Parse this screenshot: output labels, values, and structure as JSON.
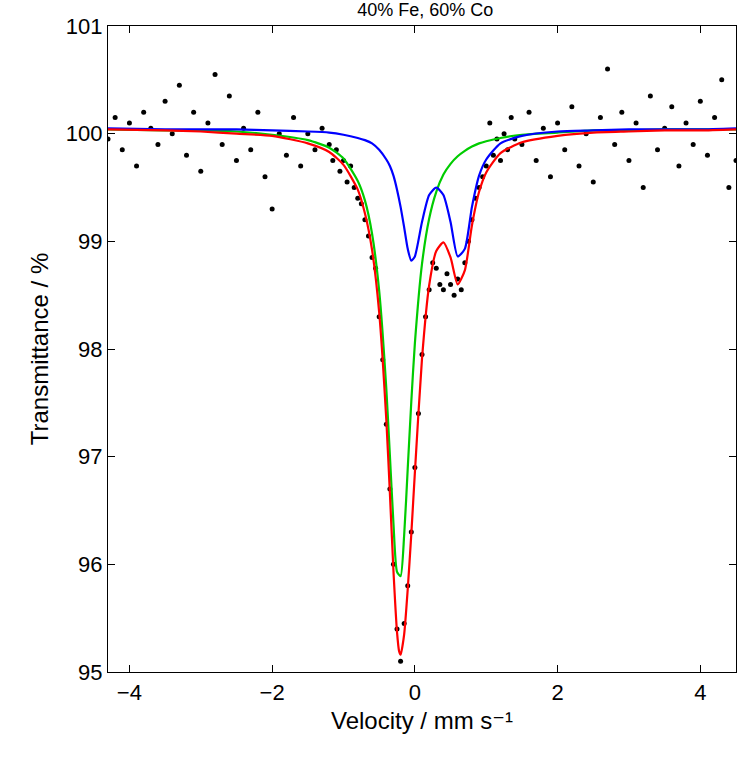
{
  "chart_data": {
    "type": "scatter",
    "title": "40% Fe, 60% Co",
    "x_label": "Velocity / mm s⁻¹",
    "y_label": "Transmittance / %",
    "xlim": [
      -4.3,
      4.5
    ],
    "xticks": [
      -4,
      -2,
      0,
      2,
      4
    ],
    "ylim": [
      95,
      101
    ],
    "yticks": [
      95,
      96,
      97,
      98,
      99,
      100,
      101
    ],
    "grid": false,
    "series": [
      {
        "type": "scatter",
        "color": "#000000",
        "marker": "circle",
        "x": [
          -4.3,
          -4.2,
          -4.1,
          -4.0,
          -3.9,
          -3.8,
          -3.7,
          -3.6,
          -3.5,
          -3.4,
          -3.3,
          -3.2,
          -3.1,
          -3.0,
          -2.9,
          -2.8,
          -2.7,
          -2.6,
          -2.5,
          -2.4,
          -2.3,
          -2.2,
          -2.1,
          -2.0,
          -1.9,
          -1.8,
          -1.7,
          -1.6,
          -1.5,
          -1.4,
          -1.3,
          -1.2,
          -1.15,
          -1.1,
          -1.05,
          -1.0,
          -0.95,
          -0.9,
          -0.85,
          -0.8,
          -0.75,
          -0.7,
          -0.65,
          -0.6,
          -0.55,
          -0.5,
          -0.45,
          -0.4,
          -0.35,
          -0.3,
          -0.25,
          -0.2,
          -0.15,
          -0.1,
          -0.05,
          0.0,
          0.05,
          0.1,
          0.15,
          0.2,
          0.25,
          0.3,
          0.35,
          0.4,
          0.45,
          0.5,
          0.55,
          0.6,
          0.65,
          0.7,
          0.75,
          0.8,
          0.85,
          0.9,
          0.95,
          1.0,
          1.05,
          1.1,
          1.15,
          1.2,
          1.25,
          1.3,
          1.35,
          1.4,
          1.5,
          1.6,
          1.7,
          1.8,
          1.9,
          2.0,
          2.1,
          2.2,
          2.3,
          2.4,
          2.5,
          2.6,
          2.7,
          2.8,
          2.9,
          3.0,
          3.1,
          3.2,
          3.3,
          3.4,
          3.5,
          3.6,
          3.7,
          3.8,
          3.9,
          4.0,
          4.1,
          4.2,
          4.3,
          4.4,
          4.5
        ],
        "values": [
          99.95,
          100.15,
          99.85,
          100.1,
          99.7,
          100.2,
          100.05,
          99.9,
          100.3,
          100.0,
          100.45,
          99.8,
          100.2,
          99.65,
          100.1,
          100.55,
          99.9,
          100.35,
          99.75,
          100.05,
          99.85,
          100.2,
          99.6,
          99.3,
          100.0,
          99.8,
          100.15,
          99.7,
          100.0,
          99.85,
          100.05,
          99.9,
          99.75,
          99.85,
          99.65,
          99.75,
          99.55,
          99.7,
          99.5,
          99.4,
          99.35,
          99.2,
          99.05,
          98.85,
          98.75,
          98.3,
          97.9,
          97.3,
          96.7,
          96.0,
          95.4,
          95.1,
          95.45,
          95.8,
          96.3,
          96.9,
          97.4,
          97.95,
          98.3,
          98.55,
          98.8,
          98.75,
          98.6,
          98.55,
          98.7,
          98.6,
          98.5,
          98.65,
          98.55,
          98.8,
          99.0,
          99.2,
          99.4,
          99.5,
          99.6,
          99.7,
          100.1,
          99.8,
          99.95,
          99.75,
          100.0,
          99.85,
          100.15,
          99.95,
          99.9,
          100.2,
          99.75,
          100.05,
          99.6,
          100.1,
          99.85,
          100.25,
          99.7,
          100.0,
          99.55,
          100.15,
          100.6,
          99.9,
          100.2,
          99.75,
          100.1,
          99.5,
          100.35,
          99.85,
          100.05,
          100.25,
          99.7,
          100.1,
          99.9,
          100.3,
          99.8,
          100.15,
          100.5,
          99.5,
          99.75
        ]
      },
      {
        "type": "line",
        "color": "#00cc00",
        "line_style": "solid",
        "x": [
          -4.3,
          -3.5,
          -3,
          -2.5,
          -2,
          -1.5,
          -1.2,
          -1.0,
          -0.8,
          -0.7,
          -0.6,
          -0.5,
          -0.4,
          -0.35,
          -0.3,
          -0.25,
          -0.2,
          -0.15,
          -0.1,
          -0.05,
          0,
          0.1,
          0.2,
          0.3,
          0.4,
          0.5,
          0.6,
          0.7,
          0.8,
          0.9,
          1.0,
          1.2,
          1.5,
          2,
          2.5,
          3,
          3.5,
          4,
          4.5
        ],
        "values": [
          100.04,
          100.03,
          100.03,
          100.02,
          99.99,
          99.94,
          99.87,
          99.77,
          99.56,
          99.38,
          99.07,
          98.54,
          97.63,
          97.01,
          96.38,
          95.93,
          95.89,
          96.27,
          96.89,
          97.51,
          98.05,
          98.79,
          99.21,
          99.46,
          99.62,
          99.72,
          99.79,
          99.84,
          99.88,
          99.91,
          99.93,
          99.96,
          99.99,
          100.01,
          100.03,
          100.03,
          100.04,
          100.04,
          100.04
        ]
      },
      {
        "type": "line",
        "color": "#0000ff",
        "line_style": "solid",
        "x": [
          -4.3,
          -3.5,
          -3,
          -2.5,
          -2,
          -1.5,
          -1.2,
          -1.0,
          -0.8,
          -0.7,
          -0.6,
          -0.5,
          -0.4,
          -0.35,
          -0.3,
          -0.25,
          -0.2,
          -0.15,
          -0.1,
          -0.05,
          0,
          0.1,
          0.2,
          0.3,
          0.4,
          0.5,
          0.6,
          0.7,
          0.8,
          0.9,
          1.0,
          1.2,
          1.5,
          2,
          2.5,
          3,
          3.5,
          4,
          4.5
        ],
        "values": [
          100.05,
          100.04,
          100.04,
          100.04,
          100.03,
          100.02,
          100.01,
          99.99,
          99.96,
          99.94,
          99.91,
          99.85,
          99.76,
          99.7,
          99.61,
          99.48,
          99.32,
          99.13,
          98.93,
          98.82,
          98.86,
          99.18,
          99.43,
          99.5,
          99.43,
          99.18,
          98.86,
          98.93,
          99.32,
          99.61,
          99.76,
          99.91,
          99.98,
          100.02,
          100.03,
          100.04,
          100.04,
          100.04,
          100.05
        ]
      },
      {
        "type": "line",
        "color": "#ff0000",
        "line_style": "solid",
        "x": [
          -4.3,
          -3.5,
          -3,
          -2.5,
          -2,
          -1.5,
          -1.2,
          -1.0,
          -0.8,
          -0.7,
          -0.6,
          -0.5,
          -0.4,
          -0.35,
          -0.3,
          -0.25,
          -0.22,
          -0.2,
          -0.15,
          -0.1,
          -0.05,
          0,
          0.1,
          0.2,
          0.3,
          0.4,
          0.5,
          0.6,
          0.7,
          0.8,
          0.9,
          1.0,
          1.2,
          1.5,
          2,
          2.5,
          3,
          3.5,
          4,
          4.5
        ],
        "values": [
          100.04,
          100.03,
          100.02,
          100.0,
          99.98,
          99.91,
          99.83,
          99.71,
          99.48,
          99.26,
          98.92,
          98.34,
          97.34,
          96.66,
          95.94,
          95.37,
          95.19,
          95.16,
          95.35,
          95.77,
          96.28,
          96.85,
          97.91,
          98.59,
          98.91,
          98.99,
          98.85,
          98.6,
          98.73,
          99.15,
          99.46,
          99.64,
          99.82,
          99.92,
          99.98,
          100.01,
          100.02,
          100.03,
          100.03,
          100.04
        ]
      }
    ]
  }
}
